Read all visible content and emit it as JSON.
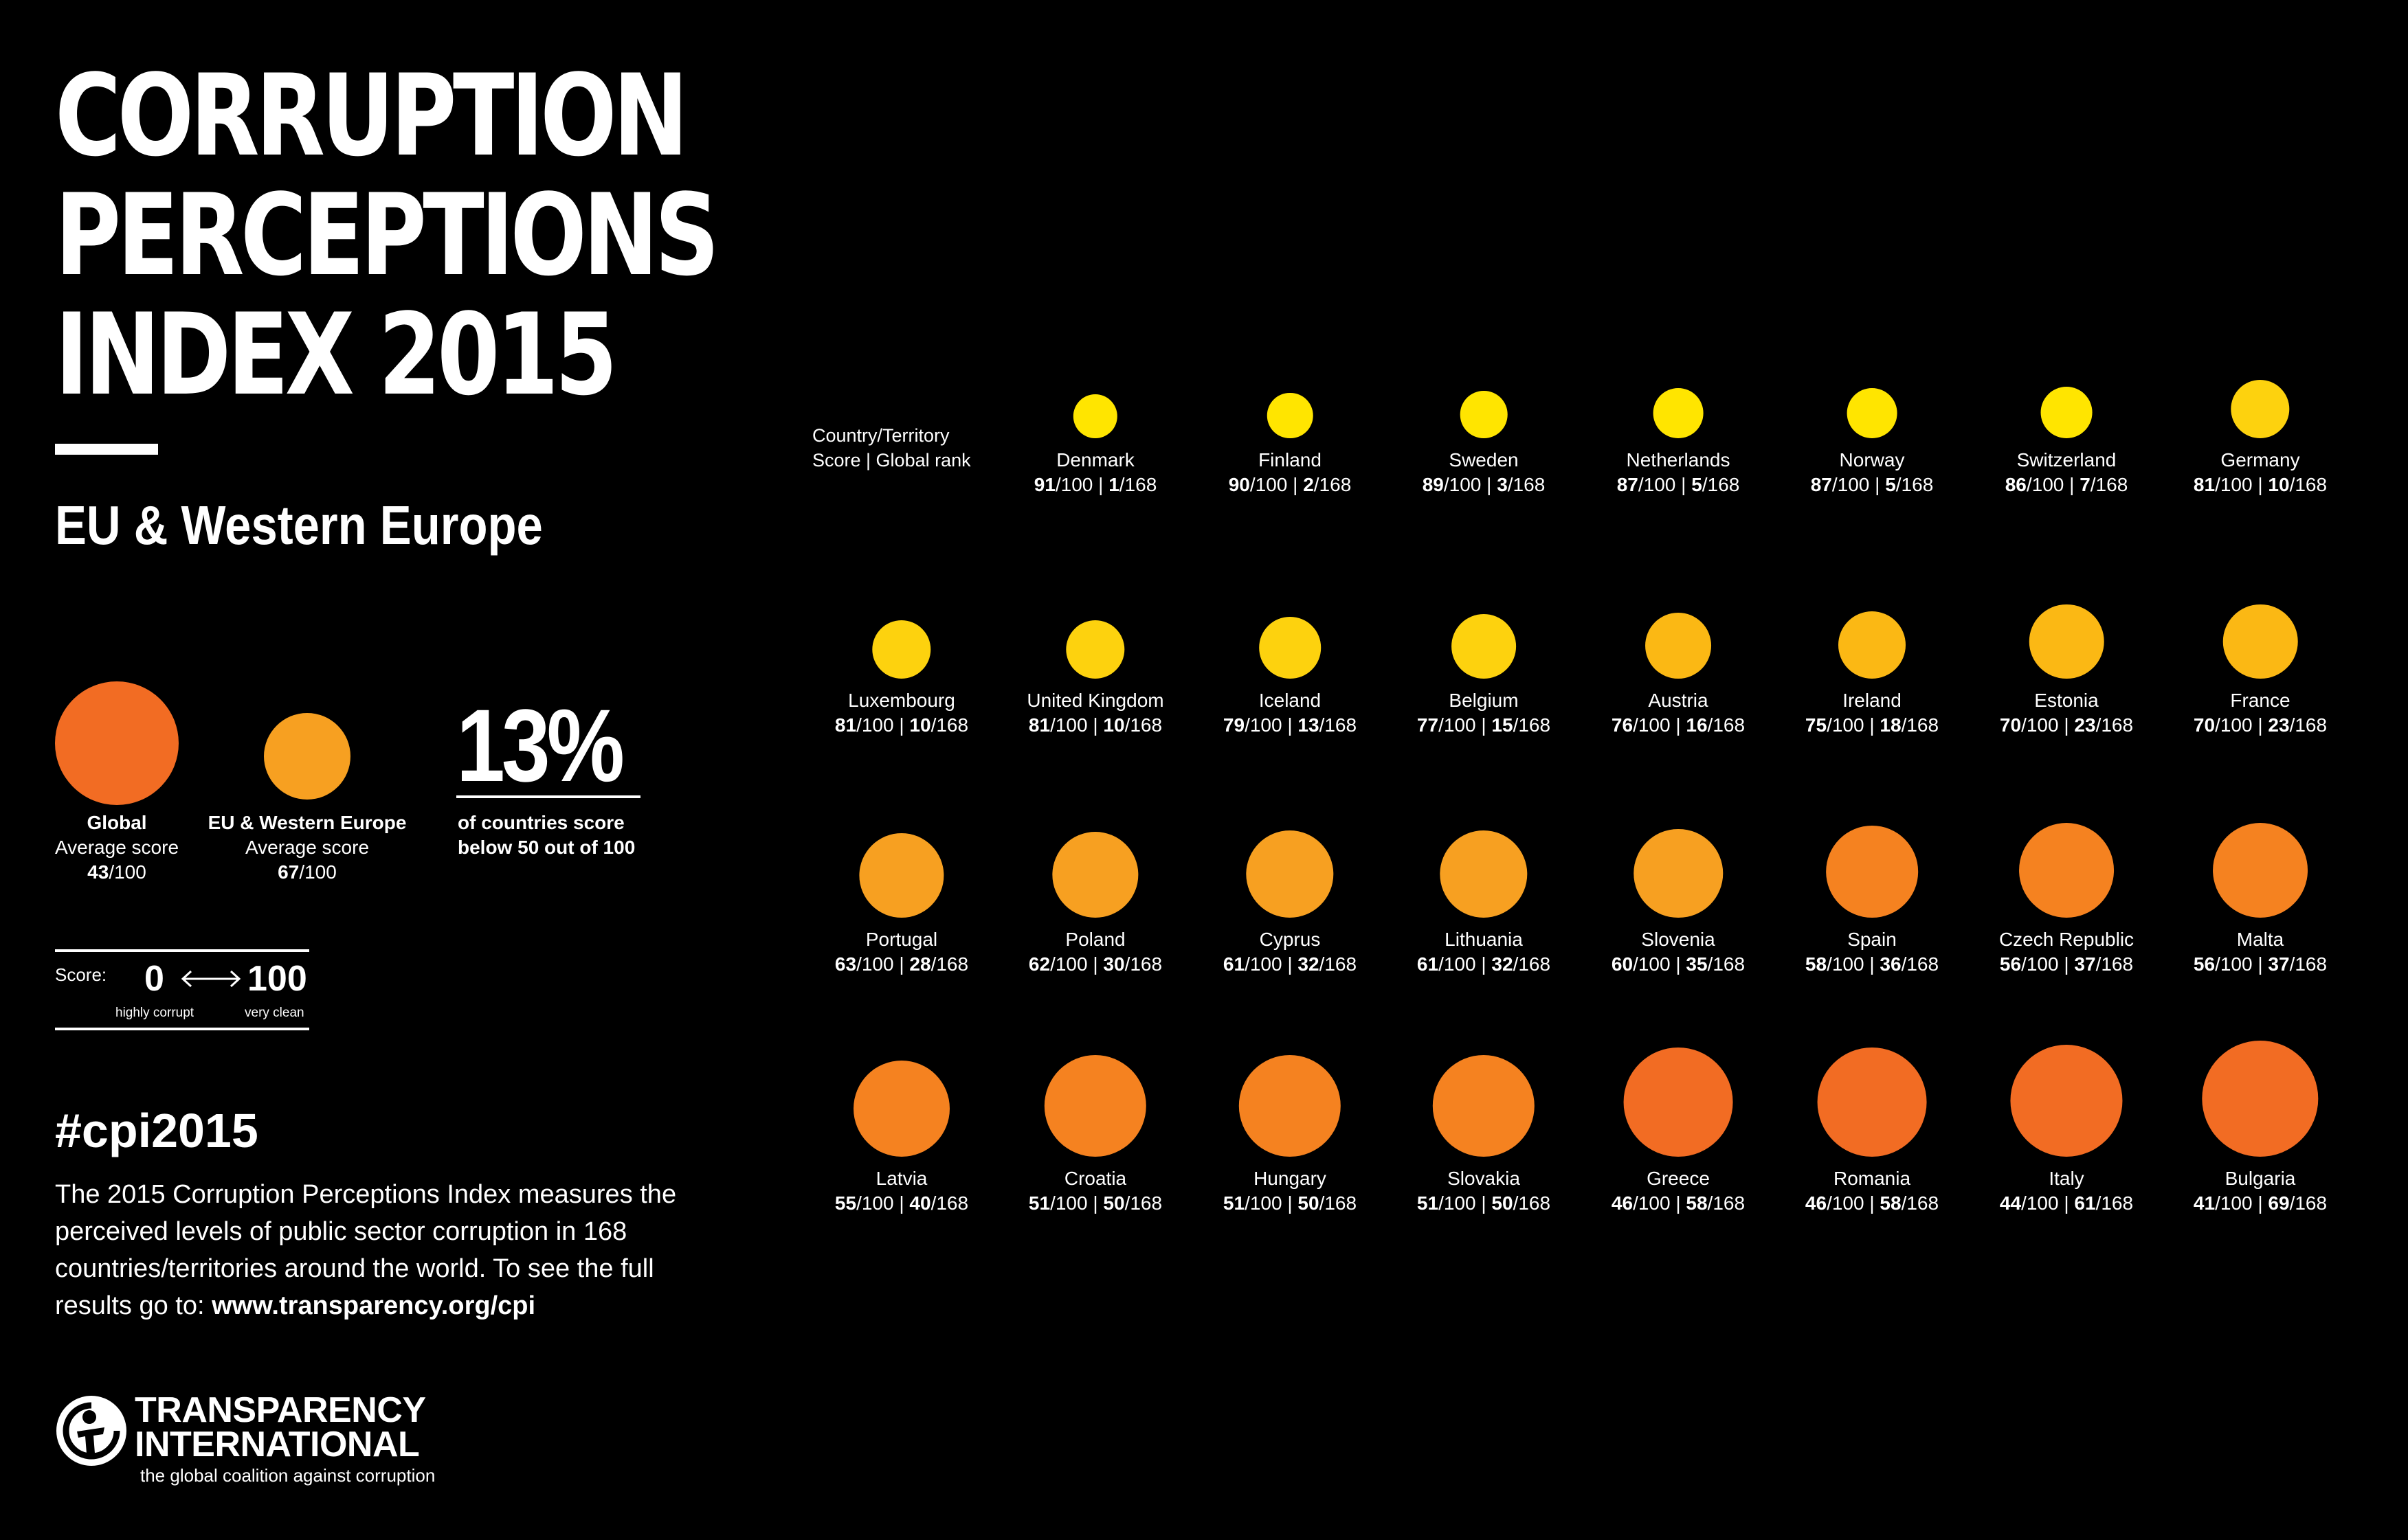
{
  "title": {
    "lines": [
      "CORRUPTION",
      "PERCEPTIONS",
      "INDEX 2015"
    ]
  },
  "region": "EU & Western Europe",
  "averages": {
    "global": {
      "heading": "Global",
      "caption": "Average score",
      "score": "43",
      "out_of": "/100",
      "color": "#f26c23"
    },
    "region": {
      "heading": "EU & Western Europe",
      "caption": "Average score",
      "score": "67",
      "out_of": "/100",
      "color": "#f7a021"
    }
  },
  "stat": {
    "value": "13%",
    "caption_line1": "of countries score",
    "caption_line2": "below 50 out of 100"
  },
  "scale": {
    "label": "Score:",
    "min": "0",
    "max": "100",
    "min_label": "highly corrupt",
    "max_label": "very clean",
    "arrow_icon": "double-arrow-icon"
  },
  "legend": {
    "line1": "Country/Territory",
    "line2": "Score | Global rank"
  },
  "hashtag": "#cpi2015",
  "description": {
    "text": "The 2015 Corruption Perceptions Index measures the perceived levels of public sector corruption in 168 countries/territories around the world. To see the full results go to: ",
    "link": "www.transparency.org/cpi"
  },
  "logo": {
    "line1": "TRANSPARENCY",
    "line2": "INTERNATIONAL",
    "tagline": "the global coalition against corruption",
    "icon": "transparency-international-logo-icon"
  },
  "chart_data": {
    "type": "proportional-symbol",
    "title": "Corruption Perceptions Index 2015 – EU & Western Europe",
    "value_label": "Score (0 = highly corrupt, 100 = very clean)",
    "rank_total": "168",
    "score_max": "100",
    "color_scale": [
      {
        "min": 85,
        "color": "#ffe500"
      },
      {
        "min": 77,
        "color": "#fdd20e"
      },
      {
        "min": 70,
        "color": "#fbb814"
      },
      {
        "min": 60,
        "color": "#f7a021"
      },
      {
        "min": 50,
        "color": "#f58220"
      },
      {
        "min": 0,
        "color": "#f26c23"
      }
    ],
    "countries": [
      {
        "name": "Denmark",
        "score": 91,
        "rank": 1
      },
      {
        "name": "Finland",
        "score": 90,
        "rank": 2
      },
      {
        "name": "Sweden",
        "score": 89,
        "rank": 3
      },
      {
        "name": "Netherlands",
        "score": 87,
        "rank": 5
      },
      {
        "name": "Norway",
        "score": 87,
        "rank": 5
      },
      {
        "name": "Switzerland",
        "score": 86,
        "rank": 7
      },
      {
        "name": "Germany",
        "score": 81,
        "rank": 10
      },
      {
        "name": "Luxembourg",
        "score": 81,
        "rank": 10
      },
      {
        "name": "United Kingdom",
        "score": 81,
        "rank": 10
      },
      {
        "name": "Iceland",
        "score": 79,
        "rank": 13
      },
      {
        "name": "Belgium",
        "score": 77,
        "rank": 15
      },
      {
        "name": "Austria",
        "score": 76,
        "rank": 16
      },
      {
        "name": "Ireland",
        "score": 75,
        "rank": 18
      },
      {
        "name": "Estonia",
        "score": 70,
        "rank": 23
      },
      {
        "name": "France",
        "score": 70,
        "rank": 23
      },
      {
        "name": "Portugal",
        "score": 63,
        "rank": 28
      },
      {
        "name": "Poland",
        "score": 62,
        "rank": 30
      },
      {
        "name": "Cyprus",
        "score": 61,
        "rank": 32
      },
      {
        "name": "Lithuania",
        "score": 61,
        "rank": 32
      },
      {
        "name": "Slovenia",
        "score": 60,
        "rank": 35
      },
      {
        "name": "Spain",
        "score": 58,
        "rank": 36
      },
      {
        "name": "Czech Republic",
        "score": 56,
        "rank": 37
      },
      {
        "name": "Malta",
        "score": 56,
        "rank": 37
      },
      {
        "name": "Latvia",
        "score": 55,
        "rank": 40
      },
      {
        "name": "Croatia",
        "score": 51,
        "rank": 50
      },
      {
        "name": "Hungary",
        "score": 51,
        "rank": 50
      },
      {
        "name": "Slovakia",
        "score": 51,
        "rank": 50
      },
      {
        "name": "Greece",
        "score": 46,
        "rank": 58
      },
      {
        "name": "Romania",
        "score": 46,
        "rank": 58
      },
      {
        "name": "Italy",
        "score": 44,
        "rank": 61
      },
      {
        "name": "Bulgaria",
        "score": 41,
        "rank": 69
      }
    ]
  }
}
